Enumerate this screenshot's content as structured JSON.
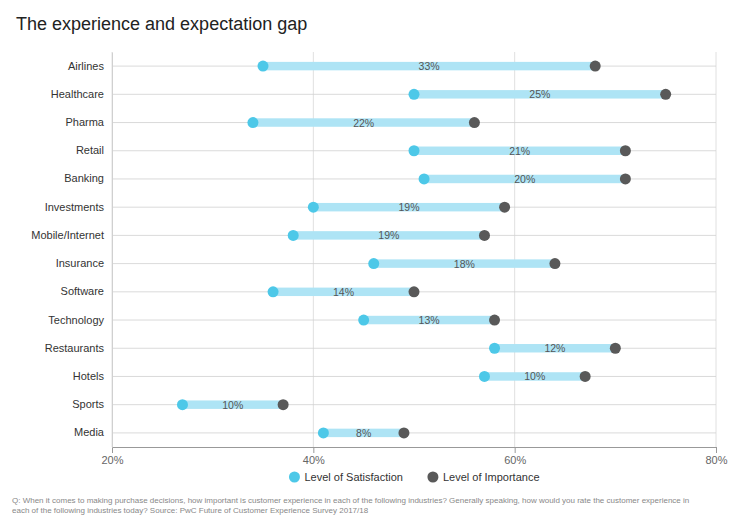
{
  "chart_data": {
    "type": "dumbbell",
    "title": "The experience and expectation gap",
    "orientation": "horizontal",
    "categories": [
      "Airlines",
      "Healthcare",
      "Pharma",
      "Retail",
      "Banking",
      "Investments",
      "Mobile/Internet",
      "Insurance",
      "Software",
      "Technology",
      "Restaurants",
      "Hotels",
      "Sports",
      "Media"
    ],
    "series": [
      {
        "name": "Level of Satisfaction",
        "color": "#4dc8e8",
        "values": [
          35,
          50,
          34,
          50,
          51,
          40,
          38,
          46,
          36,
          45,
          58,
          57,
          27,
          41
        ]
      },
      {
        "name": "Level of Importance",
        "color": "#595959",
        "values": [
          68,
          75,
          56,
          71,
          71,
          59,
          57,
          64,
          50,
          58,
          70,
          67,
          37,
          49
        ]
      }
    ],
    "gaps": {
      "color": "#aee4f5",
      "values": [
        33,
        25,
        22,
        21,
        20,
        19,
        19,
        18,
        14,
        13,
        12,
        10,
        10,
        8
      ],
      "value_labels": [
        "33%",
        "25%",
        "22%",
        "21%",
        "20%",
        "19%",
        "19%",
        "18%",
        "14%",
        "13%",
        "12%",
        "10%",
        "10%",
        "8%"
      ]
    },
    "data_labels": true,
    "xlim": [
      20,
      80
    ],
    "xticks": [
      {
        "value": 20,
        "label": "20%"
      },
      {
        "value": 40,
        "label": "40%"
      },
      {
        "value": 60,
        "label": "60%"
      },
      {
        "value": 80,
        "label": "80%"
      }
    ],
    "grid": true,
    "legend": "bottom",
    "footnote": "Q: When it comes to making purchase decisions, how important is customer experience in each of the following industries? Generally speaking, how would you rate the customer experience in\neach of the following industries today?  Source: PwC Future of Customer Experience Survey 2017/18"
  }
}
